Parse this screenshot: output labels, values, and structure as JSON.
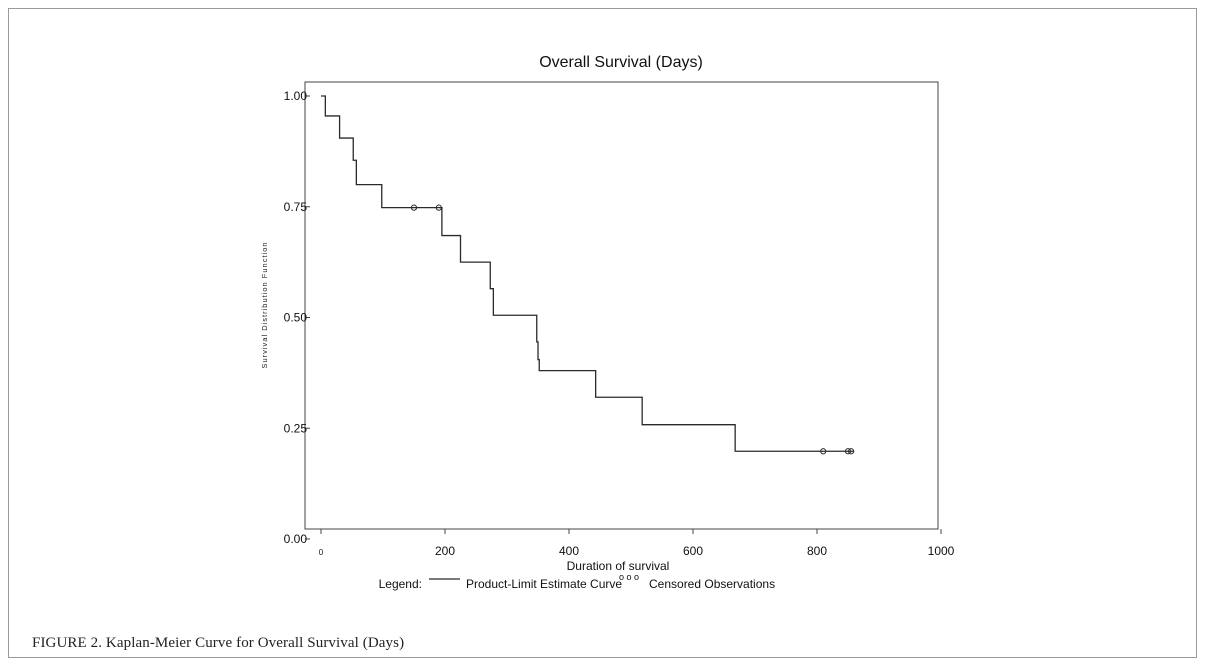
{
  "caption": "FIGURE 2. Kaplan-Meier Curve for Overall Survival (Days)",
  "chart_data": {
    "type": "line",
    "title": "Overall Survival (Days)",
    "xlabel": "Duration of survival",
    "ylabel": "Survival Distribution Function",
    "xlim": [
      0,
      1000
    ],
    "ylim": [
      0,
      1
    ],
    "x_ticks": [
      "0",
      "200",
      "400",
      "600",
      "800",
      "1000"
    ],
    "y_ticks": [
      "0.00",
      "0.25",
      "0.50",
      "0.75",
      "1.00"
    ],
    "grid": false,
    "legend": {
      "label": "Legend:",
      "curve": "Product-Limit Estimate Curve",
      "censored": "Censored Observations",
      "position": "bottom"
    },
    "series": [
      {
        "name": "Product-Limit Estimate Curve",
        "x": [
          0,
          7,
          30,
          52,
          57,
          98,
          195,
          225,
          273,
          278,
          348,
          350,
          352,
          443,
          518,
          668,
          860
        ],
        "y": [
          1.0,
          0.955,
          0.905,
          0.855,
          0.8,
          0.748,
          0.685,
          0.625,
          0.565,
          0.505,
          0.445,
          0.405,
          0.38,
          0.32,
          0.258,
          0.198,
          0.198
        ]
      }
    ],
    "censored": {
      "name": "Censored Observations",
      "x": [
        150,
        190,
        810,
        850,
        855
      ],
      "y": [
        0.748,
        0.748,
        0.198,
        0.198,
        0.198
      ]
    },
    "colors": {
      "curve": "#2a2a2a",
      "axis": "#333333",
      "text": "#111111"
    }
  }
}
